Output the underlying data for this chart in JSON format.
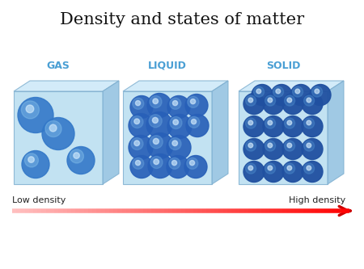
{
  "title": "Density and states of matter",
  "title_fontsize": 15,
  "background_color": "#ffffff",
  "states": [
    "GAS",
    "LIQUID",
    "SOLID"
  ],
  "state_label_color": "#4a9fd4",
  "state_label_fontsize": 9,
  "low_density_label": "Low density",
  "high_density_label": "High density",
  "density_label_fontsize": 8,
  "arrow_color": "#cc0000",
  "cube_face_color": "#b8ddf0",
  "cube_top_color": "#cce8f8",
  "cube_side_color": "#90c0e0",
  "cube_edge_color": "#80b0d0",
  "gas_sphere_color": "#3378c8",
  "gas_sphere_light": "#90caf0",
  "liquid_sphere_color": "#2860b8",
  "liquid_sphere_light": "#70aae0",
  "solid_sphere_color": "#2050a0",
  "solid_sphere_light": "#5090d0"
}
